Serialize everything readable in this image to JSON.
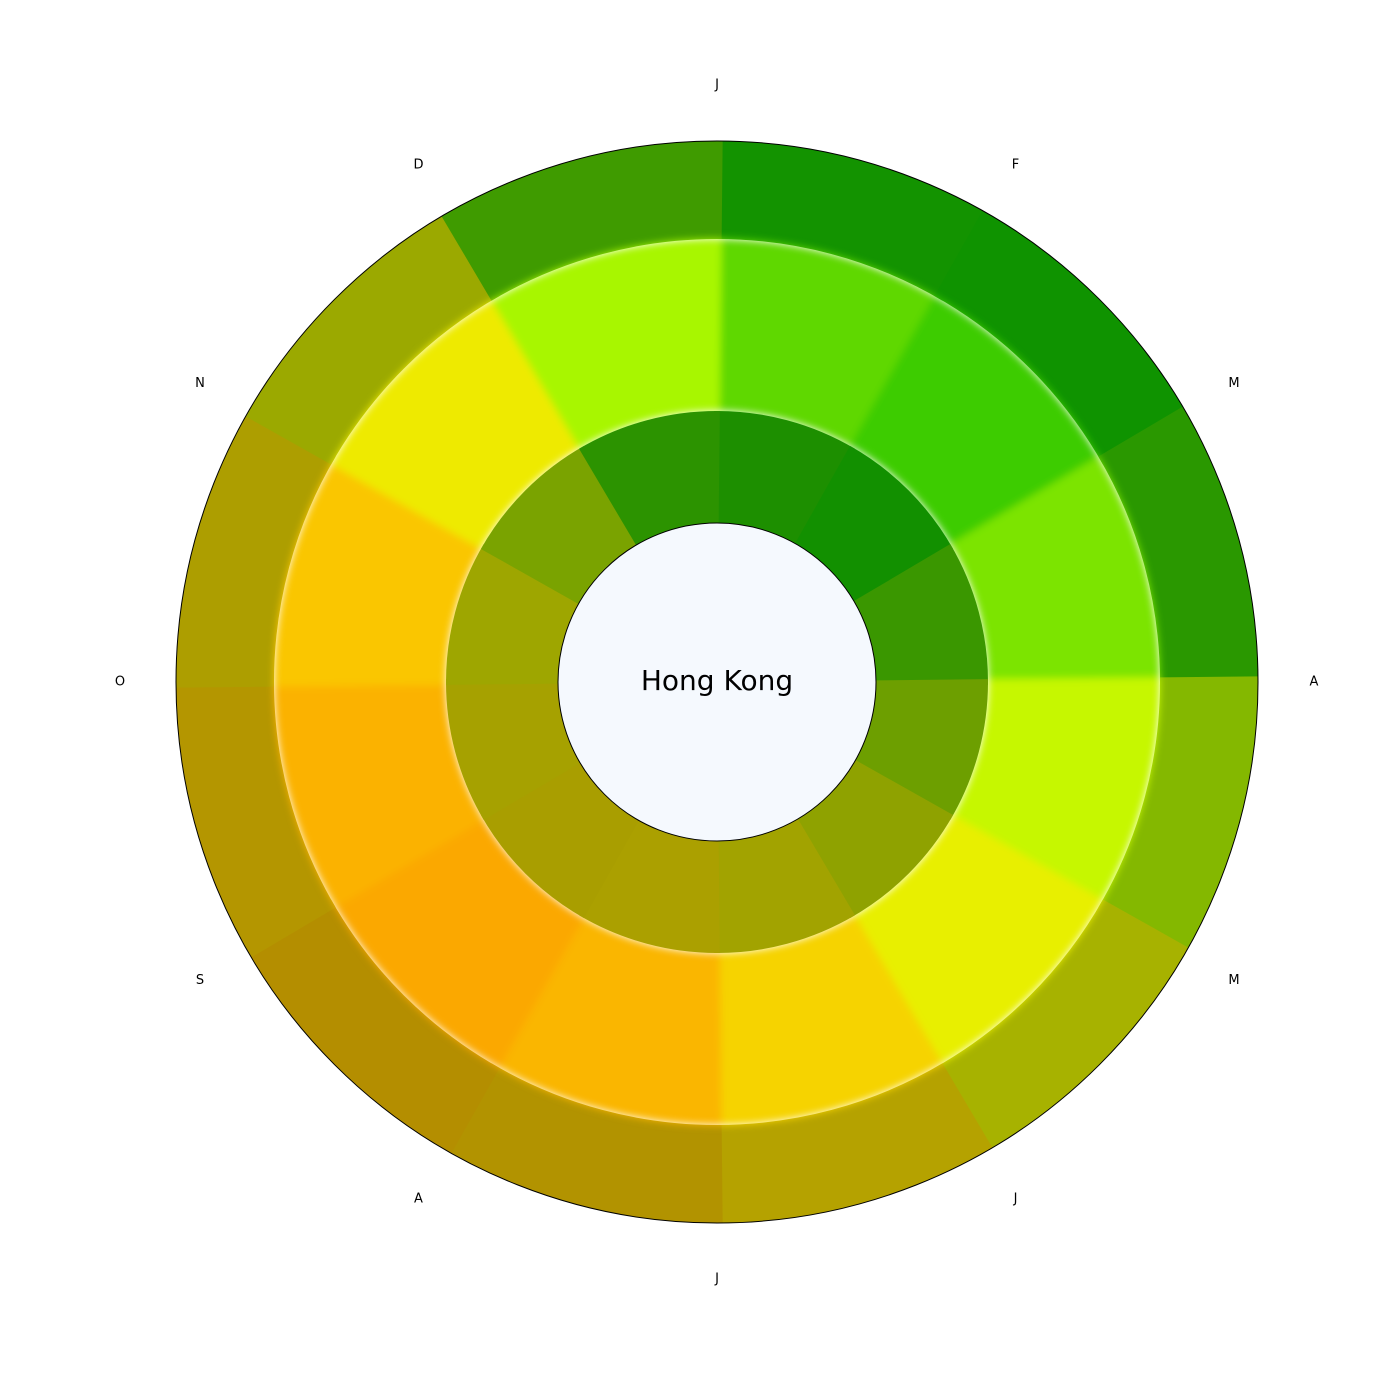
{
  "chart_data": {
    "type": "radial-heatmap",
    "title": "Hong Kong",
    "month_labels": [
      "J",
      "F",
      "M",
      "A",
      "M",
      "J",
      "J",
      "A",
      "S",
      "O",
      "N",
      "D"
    ],
    "rings": [
      "inner",
      "middle",
      "outer"
    ],
    "colors": {
      "center_fill": "#f5f9fe",
      "inner_ring": [
        "#1d8f00",
        "#129000",
        "#3a9700",
        "#6d9f00",
        "#8fa200",
        "#a2a300",
        "#aba000",
        "#a99e00",
        "#a6a100",
        "#9ea600",
        "#7aa300",
        "#2c9300"
      ],
      "middle_ring": [
        "#5fd800",
        "#3ecc00",
        "#7ce400",
        "#c6f700",
        "#e8ef00",
        "#f6d300",
        "#fab600",
        "#fba800",
        "#fbb200",
        "#fac600",
        "#eeea00",
        "#a8f600"
      ],
      "outer_ring": [
        "#139300",
        "#0f9300",
        "#2a9800",
        "#84b800",
        "#a7b200",
        "#b5a200",
        "#b29300",
        "#b48e00",
        "#b49600",
        "#ad9e00",
        "#9ba900",
        "#3f9b00"
      ]
    }
  }
}
